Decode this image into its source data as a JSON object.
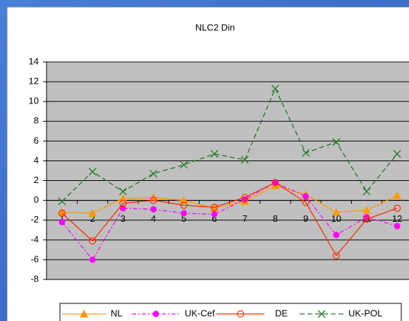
{
  "chart_data": {
    "type": "line",
    "title": "NLC2 Din",
    "categories": [
      "1",
      "2",
      "3",
      "4",
      "5",
      "6",
      "7",
      "8",
      "9",
      "10",
      "11",
      "12"
    ],
    "series": [
      {
        "name": "NL",
        "color": "#ff9900",
        "marker": "triangle",
        "dash": "solid",
        "values": [
          -1.2,
          -1.3,
          0.2,
          0.3,
          0,
          -0.8,
          -0.1,
          1.5,
          0.6,
          -1.2,
          -1,
          0.5
        ]
      },
      {
        "name": "UK-Cef",
        "color": "#ff00ff",
        "marker": "filled-circle",
        "dash": "dash-dot",
        "values": [
          -2.2,
          -6,
          -0.8,
          -0.9,
          -1.3,
          -1.4,
          0.1,
          1.8,
          0.4,
          -3.5,
          -1.7,
          -2.6
        ]
      },
      {
        "name": "DE",
        "color": "#ff2a00",
        "marker": "open-circle",
        "dash": "solid",
        "values": [
          -1.3,
          -4.1,
          -0.3,
          0,
          -0.5,
          -0.7,
          0.3,
          1.8,
          -0.2,
          -5.6,
          -1.9,
          -0.8
        ]
      },
      {
        "name": "UK-POL",
        "color": "#1f7a1f",
        "marker": "x",
        "dash": "dash",
        "values": [
          -0.1,
          2.9,
          0.9,
          2.7,
          3.6,
          4.7,
          4.1,
          11.3,
          4.8,
          5.9,
          0.9,
          4.7
        ]
      }
    ],
    "ylim": [
      -8,
      14
    ],
    "yticks": [
      -8,
      -6,
      -4,
      -2,
      0,
      2,
      4,
      6,
      8,
      10,
      12,
      14
    ],
    "grid": true,
    "legend": "bottom"
  }
}
